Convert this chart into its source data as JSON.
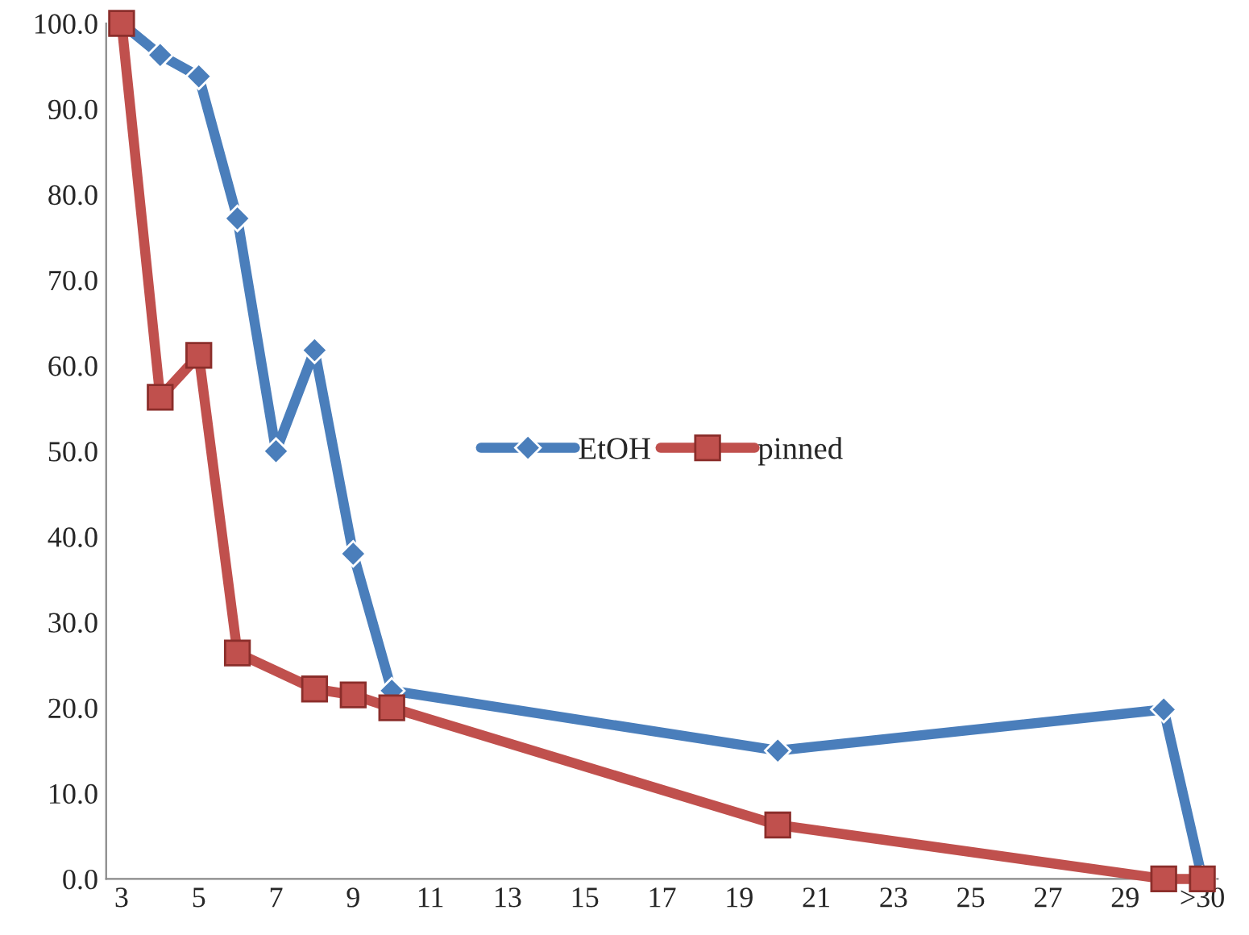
{
  "chart_data": {
    "type": "line",
    "categories": [
      "3",
      null,
      "5",
      null,
      "7",
      null,
      "9",
      null,
      "11",
      null,
      "13",
      null,
      "15",
      null,
      "17",
      null,
      "19",
      null,
      "21",
      null,
      "23",
      null,
      "25",
      null,
      "27",
      null,
      "29",
      null,
      ">30"
    ],
    "series": [
      {
        "name": "EtOH",
        "color": "#4a7ebb",
        "marker": "diamond",
        "values": [
          100,
          96.3,
          93.8,
          77.2,
          50,
          61.8,
          38,
          22,
          null,
          null,
          null,
          null,
          null,
          null,
          null,
          null,
          null,
          15,
          null,
          null,
          null,
          null,
          null,
          null,
          null,
          null,
          null,
          19.8,
          0
        ]
      },
      {
        "name": "pinned",
        "color": "#c0504d",
        "marker": "square",
        "values": [
          100,
          56.3,
          61.2,
          26.4,
          null,
          22.2,
          21.5,
          20,
          null,
          null,
          null,
          null,
          null,
          null,
          null,
          null,
          null,
          6.3,
          null,
          null,
          null,
          null,
          null,
          null,
          null,
          null,
          null,
          0,
          0
        ]
      }
    ],
    "ylim": [
      0,
      100
    ],
    "yticks": [
      {
        "value": 0,
        "label": "0.0"
      },
      {
        "value": 10,
        "label": "10.0"
      },
      {
        "value": 20,
        "label": "20.0"
      },
      {
        "value": 30,
        "label": "30.0"
      },
      {
        "value": 40,
        "label": "40.0"
      },
      {
        "value": 50,
        "label": "50.0"
      },
      {
        "value": 60,
        "label": "60.0"
      },
      {
        "value": 70,
        "label": "70.0"
      },
      {
        "value": 80,
        "label": "80.0"
      },
      {
        "value": 90,
        "label": "90.0"
      },
      {
        "value": 100,
        "label": "100.0"
      }
    ],
    "grid": false,
    "legend": "center",
    "line_style": "solid"
  }
}
